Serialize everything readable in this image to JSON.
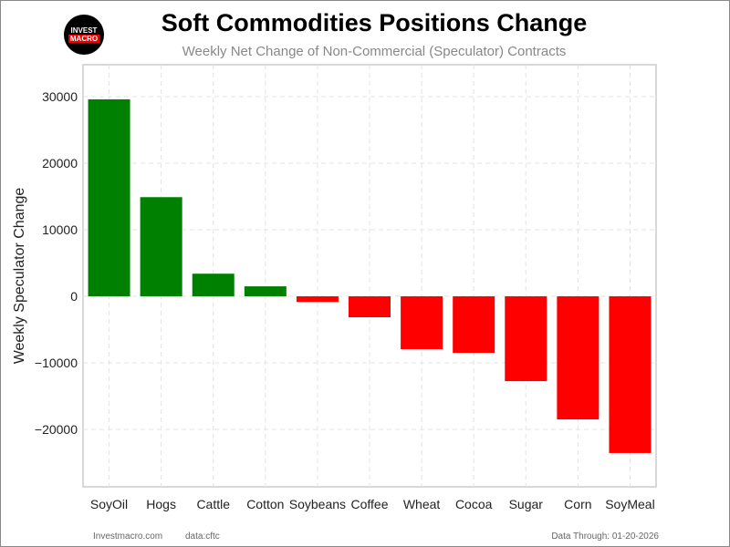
{
  "chart_data": {
    "type": "bar",
    "title": "Soft Commodities Positions Change",
    "subtitle": "Weekly Net Change of Non-Commercial (Speculator) Contracts",
    "xlabel": "",
    "ylabel": "Weekly Speculator Change",
    "categories": [
      "SoyOil",
      "Hogs",
      "Cattle",
      "Cotton",
      "Soybeans",
      "Coffee",
      "Wheat",
      "Cocoa",
      "Sugar",
      "Corn",
      "SoyMeal"
    ],
    "values": [
      29600,
      14900,
      3400,
      1500,
      -850,
      -3150,
      -7950,
      -8500,
      -12750,
      -18500,
      -23550
    ],
    "ylim": [
      -28630,
      34800
    ],
    "yticks": [
      -20000,
      -10000,
      0,
      10000,
      20000,
      30000
    ],
    "ytick_labels": [
      "−20000",
      "−10000",
      "0",
      "10000",
      "20000",
      "30000"
    ],
    "grid": true,
    "colors": {
      "positive": "#008000",
      "negative": "#ff0000"
    }
  },
  "logo": {
    "line1": "INVEST",
    "line2": "MACRO"
  },
  "footer": {
    "site": "Investmacro.com",
    "source": "data:cftc",
    "through": "Data Through: 01-20-2026"
  }
}
